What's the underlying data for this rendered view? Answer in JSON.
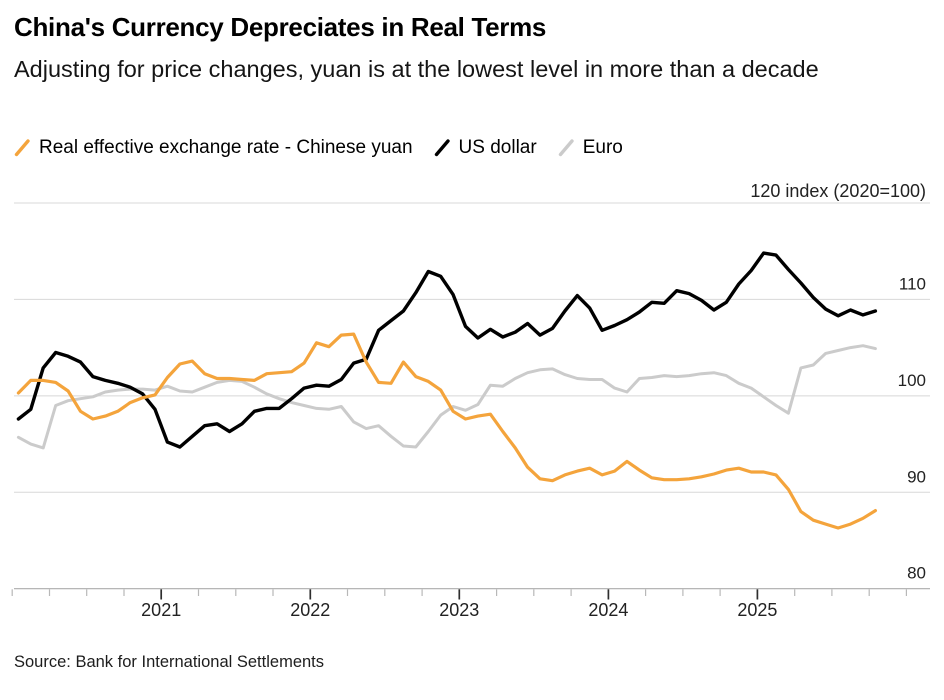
{
  "header": {
    "title": "China's Currency Depreciates in Real Terms",
    "subtitle": "Adjusting for price changes, yuan is at the lowest level in more than a decade"
  },
  "footer": {
    "source": "Source: Bank for International Settlements"
  },
  "chart_data": {
    "type": "line",
    "title": "China's Currency Depreciates in Real Terms",
    "subtitle": "Adjusting for price changes, yuan is at the lowest level in more than a decade",
    "unit_note": "120 index (2020=100)",
    "x_start": "2020-01",
    "x_end": "2025-10",
    "frequency": "monthly",
    "x_tick_labels": [
      "2021",
      "2022",
      "2023",
      "2024",
      "2025"
    ],
    "x_minor_tick_interval_months": 3,
    "y_tick_labels": [
      110,
      100,
      90,
      80
    ],
    "y_gridlines": [
      120,
      110,
      100,
      90
    ],
    "ylim": [
      80,
      120
    ],
    "grid": "horizontal-only",
    "legend_position": "top-left",
    "colors": {
      "gridline": "#D8D8D8",
      "axis_line": "#ABABAB",
      "major_tick": "#2E2E2E",
      "minor_tick": "#B8B8B8",
      "tick_label": "#222222"
    },
    "series": [
      {
        "id": "yuan",
        "name": "Real effective exchange rate - Chinese yuan",
        "color": "#F4A43C",
        "width": 3.2,
        "values": [
          100.3,
          101.6,
          101.6,
          101.4,
          100.5,
          98.4,
          97.6,
          97.9,
          98.4,
          99.3,
          99.8,
          100.1,
          101.9,
          103.3,
          103.6,
          102.3,
          101.8,
          101.8,
          101.7,
          101.6,
          102.3,
          102.4,
          102.5,
          103.4,
          105.5,
          105.1,
          106.3,
          106.4,
          103.5,
          101.4,
          101.3,
          103.5,
          102.0,
          101.5,
          100.6,
          98.4,
          97.6,
          97.9,
          98.1,
          96.3,
          94.6,
          92.6,
          91.4,
          91.2,
          91.8,
          92.2,
          92.5,
          91.8,
          92.2,
          93.2,
          92.3,
          91.5,
          91.3,
          91.3,
          91.4,
          91.6,
          91.9,
          92.3,
          92.5,
          92.1,
          92.1,
          91.8,
          90.3,
          88.0,
          87.1,
          86.7,
          86.3,
          86.7,
          87.3,
          88.1
        ]
      },
      {
        "id": "us-dollar",
        "name": "US dollar",
        "color": "#000000",
        "width": 3.4,
        "values": [
          97.6,
          98.6,
          102.9,
          104.5,
          104.1,
          103.5,
          102.0,
          101.6,
          101.3,
          100.9,
          100.2,
          98.6,
          95.2,
          94.7,
          95.8,
          96.9,
          97.1,
          96.3,
          97.1,
          98.4,
          98.7,
          98.7,
          99.7,
          100.8,
          101.1,
          101.0,
          101.7,
          103.4,
          103.8,
          106.8,
          107.8,
          108.8,
          110.7,
          112.9,
          112.4,
          110.5,
          107.2,
          106.0,
          106.9,
          106.1,
          106.6,
          107.5,
          106.3,
          107.0,
          108.8,
          110.4,
          109.1,
          106.8,
          107.3,
          107.9,
          108.7,
          109.7,
          109.6,
          110.9,
          110.6,
          109.9,
          108.9,
          109.7,
          111.6,
          113.0,
          114.8,
          114.6,
          113.1,
          111.7,
          110.2,
          109.0,
          108.3,
          108.9,
          108.4,
          108.8
        ]
      },
      {
        "id": "euro",
        "name": "Euro",
        "color": "#CBCBCB",
        "width": 3.0,
        "values": [
          95.7,
          95.0,
          94.6,
          99.0,
          99.5,
          99.7,
          99.9,
          100.4,
          100.6,
          100.7,
          100.7,
          100.6,
          101.0,
          100.5,
          100.4,
          100.9,
          101.4,
          101.6,
          101.5,
          100.9,
          100.2,
          99.7,
          99.3,
          99.0,
          98.7,
          98.6,
          98.9,
          97.3,
          96.6,
          96.9,
          95.8,
          94.8,
          94.7,
          96.3,
          98.0,
          98.9,
          98.5,
          99.1,
          101.1,
          101.0,
          101.8,
          102.4,
          102.7,
          102.8,
          102.2,
          101.8,
          101.7,
          101.7,
          100.8,
          100.4,
          101.8,
          101.9,
          102.1,
          102.0,
          102.1,
          102.3,
          102.4,
          102.1,
          101.3,
          100.8,
          99.9,
          99.0,
          98.2,
          102.9,
          103.2,
          104.4,
          104.7,
          105.0,
          105.2,
          104.9
        ]
      }
    ]
  }
}
